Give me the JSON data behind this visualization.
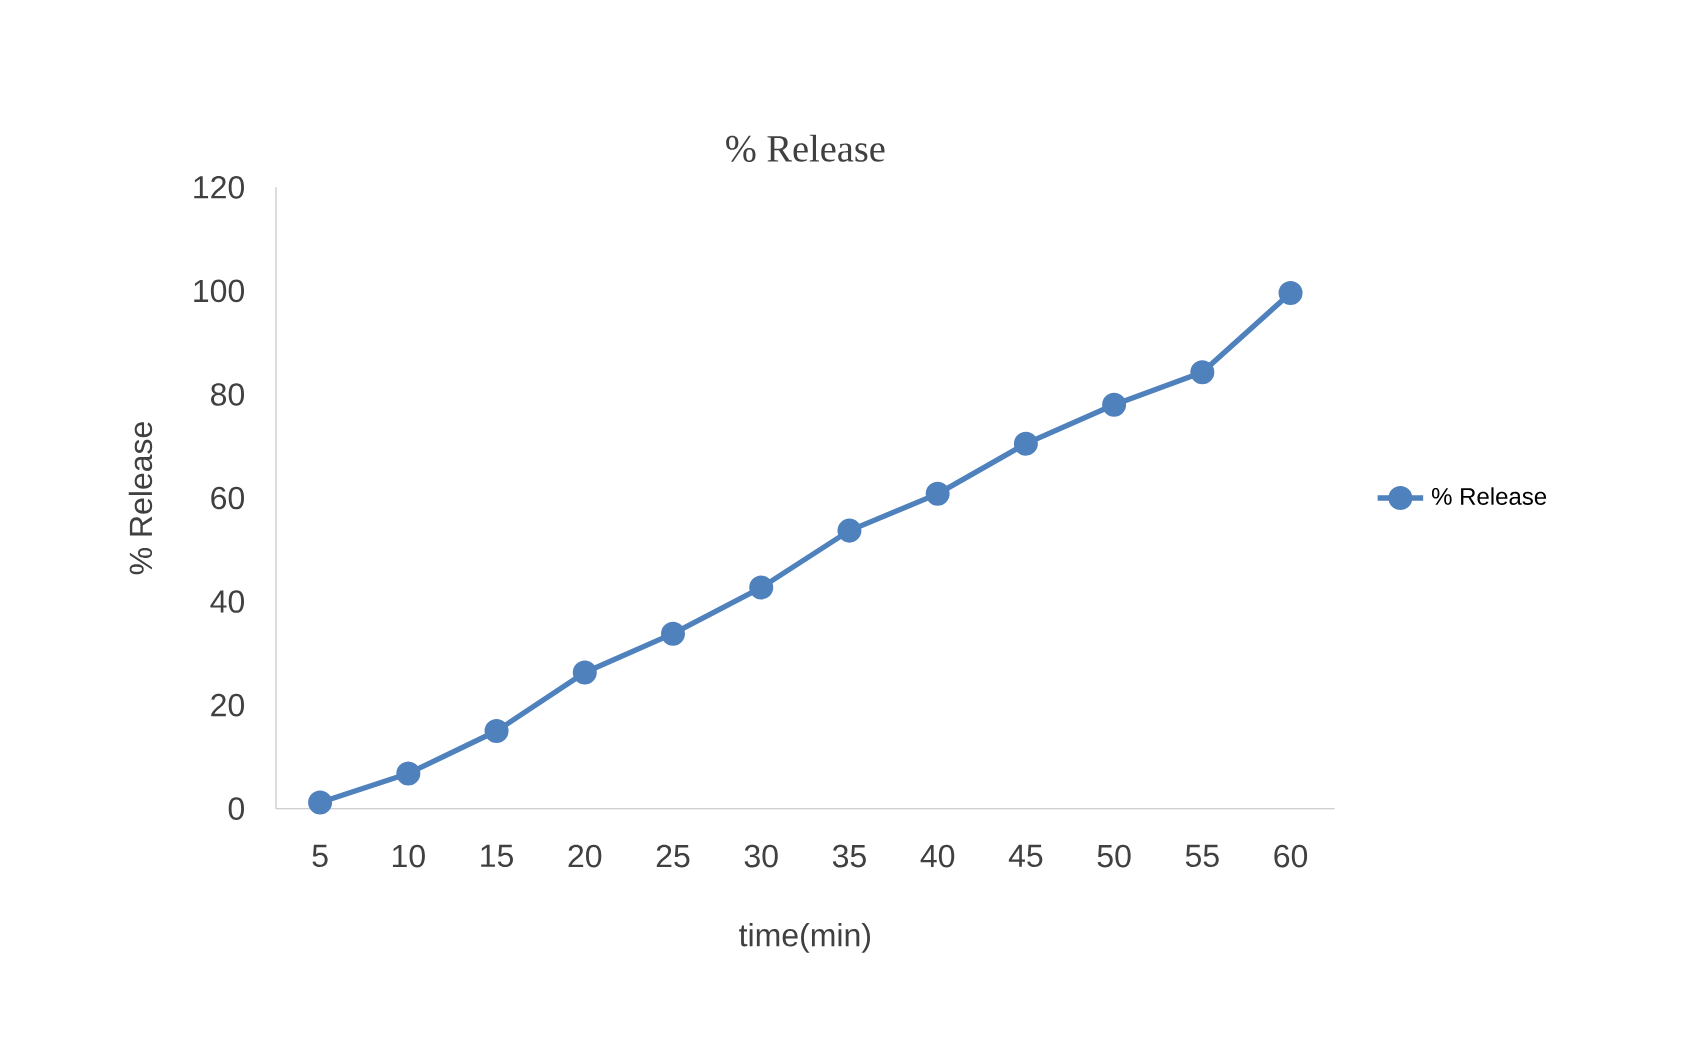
{
  "chart_data": {
    "type": "line",
    "title": "% Release",
    "xlabel": "time(min)",
    "ylabel": "% Release",
    "categories": [
      "5",
      "10",
      "15",
      "20",
      "25",
      "30",
      "35",
      "40",
      "45",
      "50",
      "55",
      "60"
    ],
    "series": [
      {
        "name": "% Release",
        "color": "#4f81bd",
        "values": [
          1.2,
          6.8,
          15.0,
          26.3,
          33.8,
          42.7,
          53.7,
          60.8,
          70.5,
          78.0,
          84.3,
          99.6
        ]
      }
    ],
    "ylim": [
      0,
      120
    ],
    "yticks": [
      0,
      20,
      40,
      60,
      80,
      100,
      120
    ],
    "grid": false,
    "legend": "right",
    "marker": "circle"
  }
}
